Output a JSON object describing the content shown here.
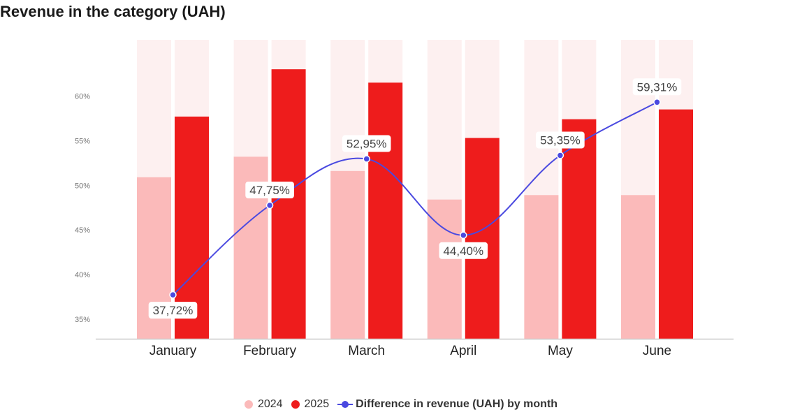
{
  "title": "Revenue in the category (UAH)",
  "colors": {
    "bar_2024": "#fbbaba",
    "bar_2025": "#ee1c1c",
    "bar_bg": "#fdf0f0",
    "line": "#4a49e0",
    "axis": "#cccccc"
  },
  "chart_data": {
    "type": "bar",
    "title": "Revenue in the category (UAH)",
    "categories": [
      "January",
      "February",
      "March",
      "April",
      "May",
      "June"
    ],
    "series": [
      {
        "name": "2024",
        "type": "bar",
        "values": [
          50.9,
          53.2,
          51.6,
          48.4,
          48.9,
          48.9
        ]
      },
      {
        "name": "2025",
        "type": "bar",
        "values": [
          57.7,
          63.0,
          61.5,
          55.3,
          57.4,
          58.5
        ]
      },
      {
        "name": "Difference in revenue (UAH) by month",
        "type": "line",
        "values": [
          37.72,
          47.75,
          52.95,
          44.4,
          53.35,
          59.31
        ],
        "labels": [
          "37,72%",
          "47,75%",
          "52,95%",
          "44,40%",
          "53,35%",
          "59,31%"
        ]
      }
    ],
    "yaxis": {
      "ticks": [
        35,
        40,
        45,
        50,
        55,
        60
      ],
      "tick_labels": [
        "35%",
        "40%",
        "45%",
        "50%",
        "55%",
        "60%"
      ],
      "ylim": [
        32.8,
        66.3
      ]
    },
    "grid": false,
    "legend_position": "bottom-center"
  },
  "legend": {
    "items": [
      {
        "label": "2024"
      },
      {
        "label": "2025"
      },
      {
        "label": "Difference in revenue (UAH) by month"
      }
    ]
  }
}
